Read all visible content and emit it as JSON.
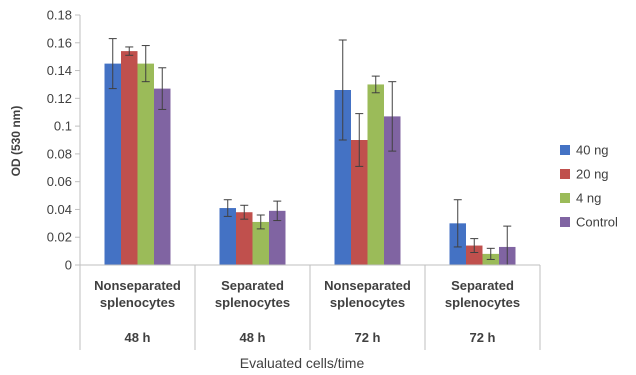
{
  "chart_data": {
    "type": "bar",
    "ylabel": "OD (530 nm)",
    "xlabel": "Evaluated cells/time",
    "ylim": [
      0,
      0.18
    ],
    "yticks": [
      0,
      0.02,
      0.04,
      0.06,
      0.08,
      0.1,
      0.12,
      0.14,
      0.16,
      0.18
    ],
    "ytick_labels": [
      "0",
      "0.02",
      "0.04",
      "0.06",
      "0.08",
      "0.1",
      "0.12",
      "0.14",
      "0.16",
      "0.18"
    ],
    "categories": [
      {
        "line1": "Nonseparated",
        "line2": "splenocytes",
        "time": "48 h"
      },
      {
        "line1": "Separated",
        "line2": "splenocytes",
        "time": "48 h"
      },
      {
        "line1": "Nonseparated",
        "line2": "splenocytes",
        "time": "72 h"
      },
      {
        "line1": "Separated",
        "line2": "splenocytes",
        "time": "72 h"
      }
    ],
    "series": [
      {
        "name": "40 ng",
        "color": "#4472C4",
        "values": [
          0.145,
          0.041,
          0.126,
          0.03
        ],
        "errors": [
          0.018,
          0.006,
          0.036,
          0.017
        ]
      },
      {
        "name": "20 ng",
        "color": "#C0504D",
        "values": [
          0.154,
          0.038,
          0.09,
          0.014
        ],
        "errors": [
          0.003,
          0.005,
          0.019,
          0.005
        ]
      },
      {
        "name": "4 ng",
        "color": "#9BBB59",
        "values": [
          0.145,
          0.031,
          0.13,
          0.008
        ],
        "errors": [
          0.013,
          0.005,
          0.006,
          0.004
        ]
      },
      {
        "name": "Control",
        "color": "#8064A2",
        "values": [
          0.127,
          0.039,
          0.107,
          0.013
        ],
        "errors": [
          0.015,
          0.007,
          0.025,
          0.015
        ]
      }
    ],
    "grid": false,
    "legend": "right"
  }
}
